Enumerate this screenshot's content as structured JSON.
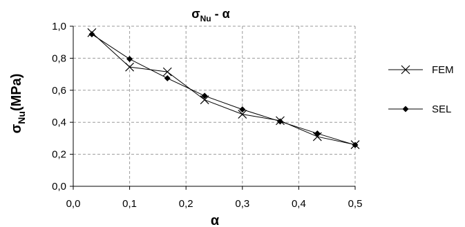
{
  "chart_data": {
    "type": "line",
    "title": "σ",
    "title_sub": "Nu",
    "title_rest": " - α",
    "xlabel": "α",
    "ylabel_main": "σ",
    "ylabel_sub": "Nu",
    "ylabel_rest": "(MPa)",
    "xlim": [
      0,
      0.5
    ],
    "ylim": [
      0,
      1.0
    ],
    "xticks": [
      "0,0",
      "0,1",
      "0,2",
      "0,3",
      "0,4",
      "0,5"
    ],
    "yticks": [
      "0,0",
      "0,2",
      "0,4",
      "0,6",
      "0,8",
      "1,0"
    ],
    "grid": true,
    "legend_position": "right",
    "series": [
      {
        "name": "FEM",
        "marker": "x",
        "color": "#000000",
        "x": [
          0.033,
          0.1,
          0.167,
          0.233,
          0.3,
          0.367,
          0.433,
          0.5
        ],
        "y": [
          0.96,
          0.745,
          0.715,
          0.54,
          0.45,
          0.41,
          0.31,
          0.26
        ]
      },
      {
        "name": "SEL",
        "marker": "diamond",
        "color": "#000000",
        "x": [
          0.033,
          0.1,
          0.167,
          0.233,
          0.3,
          0.367,
          0.433,
          0.5
        ],
        "y": [
          0.95,
          0.795,
          0.675,
          0.565,
          0.48,
          0.405,
          0.33,
          0.258
        ]
      }
    ]
  }
}
